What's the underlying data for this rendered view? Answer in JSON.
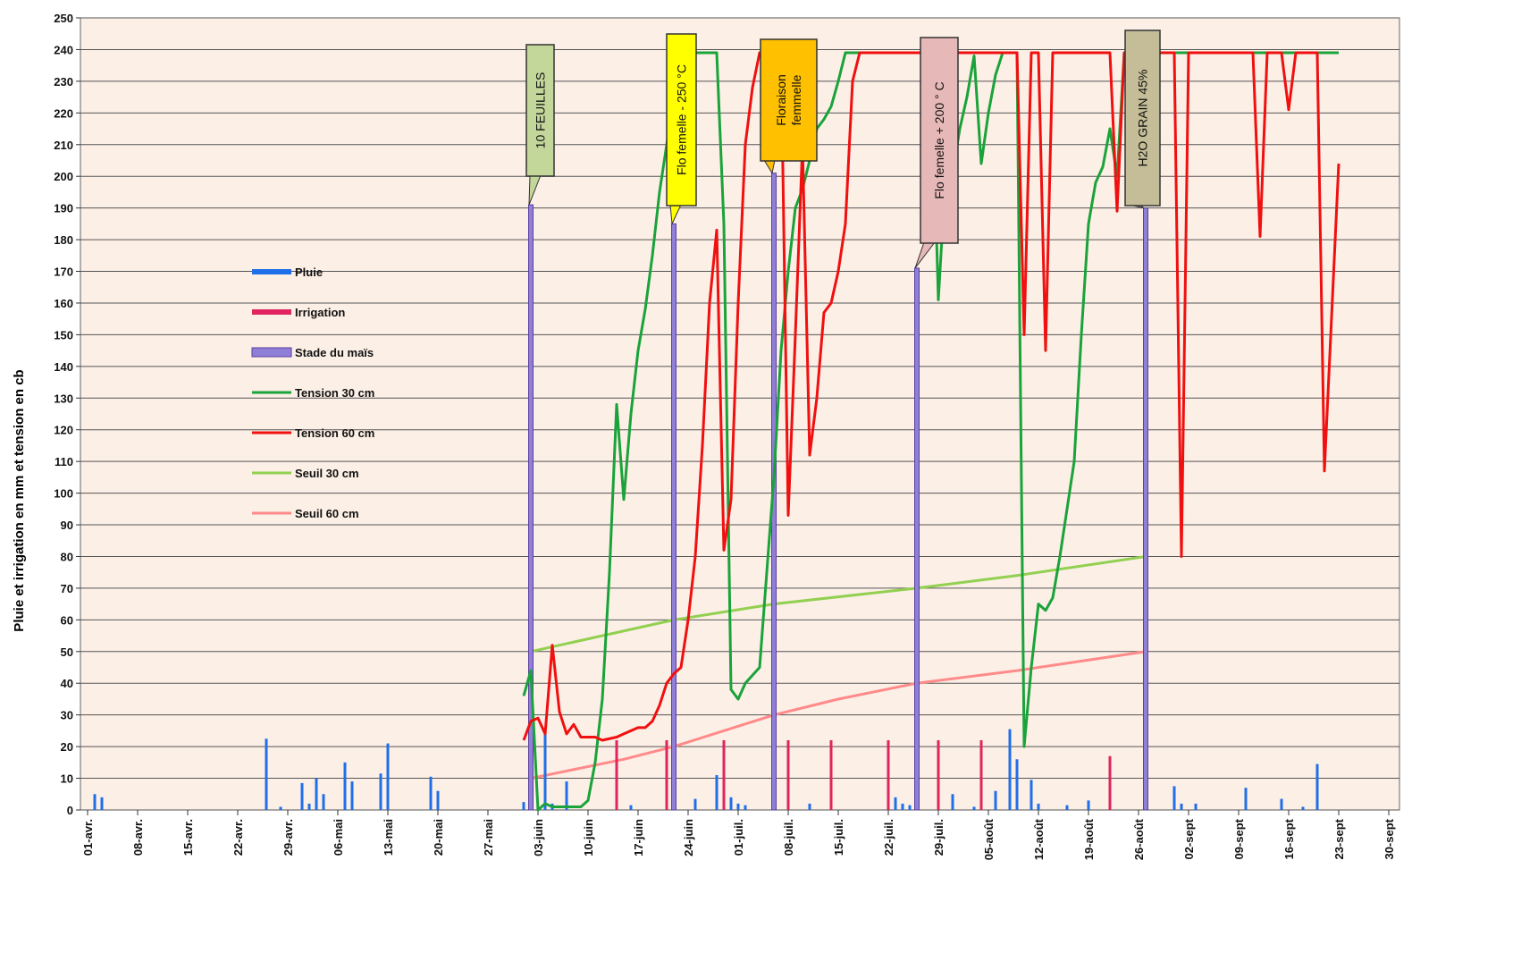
{
  "chart_data": {
    "type": "line",
    "ylabel": "Pluie et irrigation en mm et tension en cb",
    "xlim": [
      -1,
      183.5
    ],
    "xticks": [
      {
        "value": 0,
        "label": "01-avr."
      },
      {
        "value": 7,
        "label": "08-avr."
      },
      {
        "value": 14,
        "label": "15-avr."
      },
      {
        "value": 21,
        "label": "22-avr."
      },
      {
        "value": 28,
        "label": "29-avr."
      },
      {
        "value": 35,
        "label": "06-mai"
      },
      {
        "value": 42,
        "label": "13-mai"
      },
      {
        "value": 49,
        "label": "20-mai"
      },
      {
        "value": 56,
        "label": "27-mai"
      },
      {
        "value": 63,
        "label": "03-juin"
      },
      {
        "value": 70,
        "label": "10-juin"
      },
      {
        "value": 77,
        "label": "17-juin"
      },
      {
        "value": 84,
        "label": "24-juin"
      },
      {
        "value": 91,
        "label": "01-juil."
      },
      {
        "value": 98,
        "label": "08-juil."
      },
      {
        "value": 105,
        "label": "15-juil."
      },
      {
        "value": 112,
        "label": "22-juil."
      },
      {
        "value": 119,
        "label": "29-juil."
      },
      {
        "value": 126,
        "label": "05-août"
      },
      {
        "value": 133,
        "label": "12-août"
      },
      {
        "value": 140,
        "label": "19-août"
      },
      {
        "value": 147,
        "label": "26-août"
      },
      {
        "value": 154,
        "label": "02-sept"
      },
      {
        "value": 161,
        "label": "09-sept"
      },
      {
        "value": 168,
        "label": "16-sept"
      },
      {
        "value": 175,
        "label": "23-sept"
      },
      {
        "value": 182,
        "label": "30-sept"
      }
    ],
    "ylim": [
      0,
      250
    ],
    "yticks": [
      0,
      10,
      20,
      30,
      40,
      50,
      60,
      70,
      80,
      90,
      100,
      110,
      120,
      130,
      140,
      150,
      160,
      170,
      180,
      190,
      200,
      210,
      220,
      230,
      240,
      250
    ],
    "grid": true,
    "series": [
      {
        "name": "Pluie",
        "type": "bar",
        "color": "#1f6fe8",
        "x": [
          1,
          2,
          25,
          27,
          30,
          31,
          32,
          33,
          36,
          37,
          41,
          42,
          48,
          49,
          61,
          64,
          65,
          67,
          74,
          76,
          85,
          88,
          89,
          90,
          91,
          92,
          101,
          113,
          114,
          115,
          121,
          124,
          127,
          129,
          130,
          132,
          133,
          137,
          140,
          152,
          153,
          155,
          162,
          167,
          170,
          172
        ],
        "values": [
          5,
          4,
          22.5,
          1,
          8.5,
          2,
          10,
          5,
          15,
          9,
          11.5,
          21,
          10.5,
          6,
          2.5,
          24,
          2,
          9,
          2.5,
          1.5,
          3.5,
          11,
          9,
          4,
          2,
          1.5,
          2,
          4,
          2,
          1.5,
          5,
          1,
          6,
          25.5,
          16,
          9.5,
          2,
          1.5,
          3,
          7.5,
          2,
          2,
          7,
          3.5,
          1,
          14.5
        ]
      },
      {
        "name": "Irrigation",
        "type": "bar",
        "color": "#e0245e",
        "x": [
          74,
          81,
          89,
          98,
          104,
          112,
          119,
          125,
          143
        ],
        "values": [
          22,
          22,
          22,
          22,
          22,
          22,
          22,
          22,
          17
        ]
      },
      {
        "name": "Stade du maïs",
        "type": "bar",
        "color": "#8f7fd6",
        "x": [
          62,
          82,
          96,
          116,
          148
        ],
        "values": [
          191,
          185,
          201,
          171,
          190
        ]
      },
      {
        "name": "Tension 30 cm",
        "type": "line",
        "color": "#1aa33a",
        "x": [
          61,
          62,
          63,
          64,
          65,
          67,
          69,
          70,
          71,
          72,
          73,
          74,
          75,
          76,
          77,
          78,
          79,
          80,
          81,
          82,
          83,
          88,
          89,
          90,
          91,
          92,
          94,
          95,
          96,
          97,
          98,
          99,
          100,
          101,
          102,
          103,
          104,
          105,
          106,
          118,
          119,
          120,
          121,
          122,
          123,
          124,
          125,
          126,
          127,
          128,
          130,
          131,
          132,
          133,
          134,
          135,
          136,
          138,
          139,
          140,
          141,
          142,
          143,
          144,
          145,
          175
        ],
        "values": [
          36,
          44,
          0,
          2,
          1,
          1,
          1,
          3,
          15,
          35,
          75,
          128,
          98,
          125,
          145,
          158,
          175,
          195,
          210,
          225,
          239,
          239,
          185,
          38,
          35,
          40,
          45,
          75,
          105,
          145,
          170,
          190,
          196,
          205,
          215,
          218,
          222,
          230,
          239,
          239,
          161,
          200,
          201,
          215,
          225,
          238,
          204,
          220,
          232,
          239,
          239,
          20,
          45,
          65,
          63,
          67,
          80,
          110,
          150,
          185,
          198,
          203,
          215,
          200,
          239,
          239
        ]
      },
      {
        "name": "Tension 60 cm",
        "type": "line",
        "color": "#f01010",
        "x": [
          61,
          62,
          63,
          64,
          65,
          66,
          67,
          68,
          69,
          71,
          72,
          74,
          75,
          77,
          78,
          79,
          80,
          81,
          82,
          83,
          84,
          85,
          86,
          87,
          88,
          89,
          90,
          91,
          92,
          93,
          94,
          97,
          98,
          99,
          100,
          101,
          102,
          103,
          104,
          105,
          106,
          107,
          108,
          130,
          131,
          132,
          133,
          134,
          135,
          143,
          144,
          145,
          152,
          153,
          154,
          163,
          164,
          165,
          167,
          168,
          169,
          172,
          173,
          175
        ],
        "values": [
          22,
          28,
          29,
          24,
          52,
          31,
          24,
          27,
          23,
          23,
          22,
          23,
          24,
          26,
          26,
          28,
          33,
          40,
          43,
          45,
          60,
          80,
          115,
          160,
          183,
          82,
          98,
          160,
          210,
          228,
          239,
          239,
          93,
          150,
          210,
          112,
          130,
          157,
          160,
          170,
          185,
          230,
          239,
          239,
          150,
          239,
          239,
          145,
          239,
          239,
          189,
          239,
          239,
          80,
          239,
          239,
          181,
          239,
          239,
          221,
          239,
          239,
          107,
          204
        ]
      },
      {
        "name": "Seuil 30 cm",
        "type": "line",
        "color": "#92d050",
        "x": [
          62,
          70,
          82,
          96,
          116,
          130,
          148
        ],
        "values": [
          50,
          54,
          60,
          65,
          70,
          74,
          80
        ]
      },
      {
        "name": "Seuil 60 cm",
        "type": "line",
        "color": "#ff8a8a",
        "x": [
          62,
          75,
          82,
          96,
          105,
          116,
          130,
          148
        ],
        "values": [
          10,
          16,
          20,
          30,
          35,
          40,
          44,
          50
        ]
      }
    ],
    "annotations": [
      {
        "lines": [
          "10 FEUILLES"
        ],
        "color": "#c4d79b"
      },
      {
        "lines": [
          "Flo femelle  - 250 °C"
        ],
        "color": "#ffff00"
      },
      {
        "lines": [
          "Floraison",
          "femmelle"
        ],
        "color": "#ffc000"
      },
      {
        "lines": [
          "Flo femelle  + 200 ° C"
        ],
        "color": "#e6b8b7"
      },
      {
        "lines": [
          "H2O  GRAIN  45%"
        ],
        "color": "#c4bd97"
      }
    ]
  }
}
